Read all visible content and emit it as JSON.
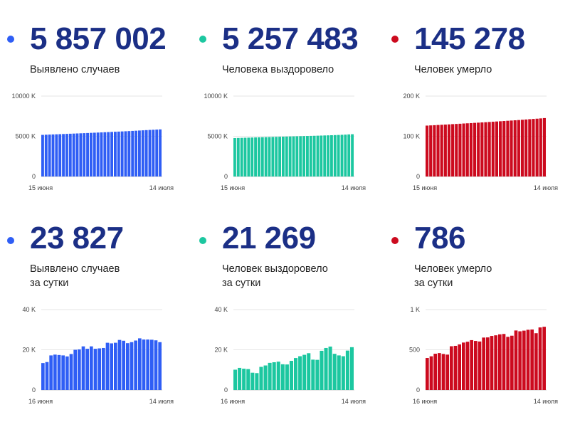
{
  "panels": [
    {
      "value": "5 857 002",
      "label": [
        "Выявлено случаев"
      ],
      "color": "#2f5ef5",
      "chart_data": {
        "type": "bar",
        "x_start_label": "15 июня",
        "x_end_label": "14 июля",
        "yticks": [
          {
            "v": 0,
            "label": "0"
          },
          {
            "v": 5000,
            "label": "5000 K"
          },
          {
            "v": 10000,
            "label": "10000 K"
          }
        ],
        "ylim": [
          0,
          10000
        ],
        "values": [
          5175,
          5196,
          5214,
          5231,
          5248,
          5265,
          5283,
          5301,
          5318,
          5336,
          5354,
          5372,
          5390,
          5408,
          5427,
          5446,
          5465,
          5484,
          5504,
          5524,
          5544,
          5564,
          5584,
          5604,
          5626,
          5648,
          5670,
          5694,
          5718,
          5743,
          5768,
          5791,
          5811,
          5832,
          5857
        ]
      }
    },
    {
      "value": "5 257 483",
      "label": [
        "Человека выздоровело"
      ],
      "color": "#1cc7a0",
      "chart_data": {
        "type": "bar",
        "x_start_label": "15 июня",
        "x_end_label": "14 июля",
        "yticks": [
          {
            "v": 0,
            "label": "0"
          },
          {
            "v": 5000,
            "label": "5000 K"
          },
          {
            "v": 10000,
            "label": "10000 K"
          }
        ],
        "ylim": [
          0,
          10000
        ],
        "values": [
          4780,
          4794,
          4807,
          4820,
          4833,
          4846,
          4859,
          4871,
          4884,
          4896,
          4908,
          4920,
          4932,
          4944,
          4956,
          4968,
          4980,
          4992,
          5004,
          5016,
          5028,
          5040,
          5052,
          5064,
          5077,
          5091,
          5104,
          5118,
          5133,
          5149,
          5166,
          5186,
          5206,
          5235,
          5257
        ]
      }
    },
    {
      "value": "145 278",
      "label": [
        "Человек умерло"
      ],
      "color": "#cc0a1e",
      "chart_data": {
        "type": "bar",
        "x_start_label": "15 июня",
        "x_end_label": "14 июля",
        "yticks": [
          {
            "v": 0,
            "label": "0"
          },
          {
            "v": 100,
            "label": "100 K"
          },
          {
            "v": 200,
            "label": "200 K"
          }
        ],
        "ylim": [
          0,
          200
        ],
        "values": [
          126.6,
          127.1,
          127.6,
          128.1,
          128.6,
          129.1,
          129.6,
          130.2,
          130.7,
          131.2,
          131.8,
          132.3,
          132.8,
          133.4,
          133.9,
          134.5,
          135.0,
          135.6,
          136.2,
          136.8,
          137.4,
          138.0,
          138.6,
          139.2,
          139.8,
          140.4,
          141.1,
          141.8,
          142.5,
          143.2,
          143.8,
          144.5,
          145.3
        ]
      }
    },
    {
      "value": "23 827",
      "label": [
        "Выявлено случаев",
        "за сутки"
      ],
      "color": "#2f5ef5",
      "chart_data": {
        "type": "bar",
        "x_start_label": "16 июня",
        "x_end_label": "14 июля",
        "yticks": [
          {
            "v": 0,
            "label": "0"
          },
          {
            "v": 20,
            "label": "20 K"
          },
          {
            "v": 40,
            "label": "40 K"
          }
        ],
        "ylim": [
          0,
          40
        ],
        "values": [
          13.4,
          13.9,
          17.2,
          17.6,
          17.4,
          17.2,
          16.7,
          17.9,
          20.0,
          20.2,
          21.7,
          20.5,
          21.7,
          20.5,
          20.7,
          20.9,
          23.5,
          23.2,
          23.5,
          24.9,
          24.5,
          23.3,
          23.8,
          24.6,
          25.7,
          25.1,
          25.1,
          25.0,
          24.7,
          23.8
        ]
      }
    },
    {
      "value": "21 269",
      "label": [
        "Человек выздоровело",
        "за сутки"
      ],
      "color": "#1cc7a0",
      "chart_data": {
        "type": "bar",
        "x_start_label": "16 июня",
        "x_end_label": "14 июля",
        "yticks": [
          {
            "v": 0,
            "label": "0"
          },
          {
            "v": 20,
            "label": "20 K"
          },
          {
            "v": 40,
            "label": "40 K"
          }
        ],
        "ylim": [
          0,
          40
        ],
        "values": [
          10.1,
          11.0,
          10.6,
          10.4,
          8.6,
          8.4,
          11.5,
          12.2,
          13.5,
          13.8,
          14.1,
          12.8,
          12.7,
          14.5,
          15.9,
          16.8,
          17.5,
          18.3,
          15.1,
          15.0,
          19.5,
          20.9,
          21.6,
          18.0,
          17.2,
          16.8,
          19.6,
          21.3
        ]
      }
    },
    {
      "value": "786",
      "label": [
        "Человек умерло",
        "за сутки"
      ],
      "color": "#cc0a1e",
      "chart_data": {
        "type": "bar",
        "x_start_label": "16 июня",
        "x_end_label": "14 июля",
        "yticks": [
          {
            "v": 0,
            "label": "0"
          },
          {
            "v": 500,
            "label": "500"
          },
          {
            "v": 1000,
            "label": "1 K"
          }
        ],
        "ylim": [
          0,
          1000
        ],
        "values": [
          398,
          419,
          451,
          459,
          448,
          440,
          544,
          549,
          567,
          590,
          600,
          620,
          610,
          603,
          652,
          654,
          672,
          680,
          692,
          697,
          661,
          675,
          740,
          730,
          738,
          749,
          752,
          706,
          778,
          786
        ]
      }
    }
  ]
}
